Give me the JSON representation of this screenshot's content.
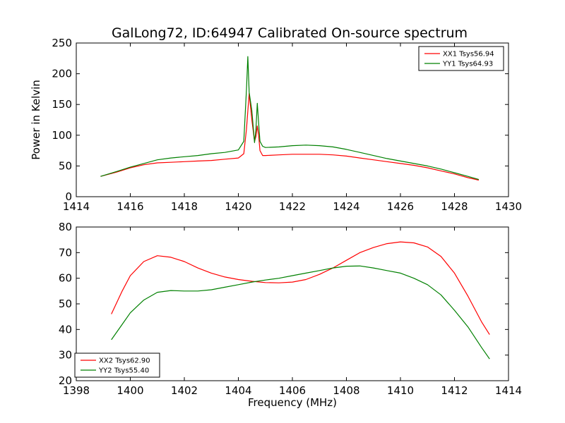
{
  "title": "GalLong72, ID:64947 Calibrated On-source spectrum",
  "chart_data": [
    {
      "type": "line",
      "title": "GalLong72, ID:64947 Calibrated On-source spectrum",
      "xlabel": "",
      "ylabel": "Power in Kelvin",
      "xlim": [
        1414,
        1430
      ],
      "ylim": [
        0,
        250
      ],
      "xticks": [
        1414,
        1416,
        1418,
        1420,
        1422,
        1424,
        1426,
        1428,
        1430
      ],
      "yticks": [
        0,
        50,
        100,
        150,
        200,
        250
      ],
      "grid": false,
      "legend": "top-right",
      "series": [
        {
          "name": "XX1 Tsys56.94",
          "color": "#ff0000",
          "x": [
            1414.9,
            1415.5,
            1416.0,
            1416.5,
            1417.0,
            1417.5,
            1418.0,
            1418.5,
            1419.0,
            1419.5,
            1420.0,
            1420.2,
            1420.3,
            1420.4,
            1420.5,
            1420.6,
            1420.65,
            1420.7,
            1420.75,
            1420.8,
            1420.9,
            1421.0,
            1421.5,
            1422.0,
            1422.5,
            1423.0,
            1423.5,
            1424.0,
            1424.5,
            1425.0,
            1425.5,
            1426.0,
            1426.5,
            1427.0,
            1427.5,
            1428.0,
            1428.5,
            1428.9
          ],
          "y": [
            33,
            40,
            47,
            52,
            55,
            56,
            57,
            58,
            59,
            61,
            63,
            70,
            110,
            168,
            125,
            90,
            98,
            115,
            100,
            75,
            67,
            67,
            68,
            69,
            69,
            69,
            68,
            66,
            63,
            60,
            57,
            54,
            51,
            47,
            42,
            37,
            31,
            27
          ]
        },
        {
          "name": "YY1 Tsys64.93",
          "color": "#008000",
          "x": [
            1414.9,
            1415.5,
            1416.0,
            1416.5,
            1417.0,
            1417.5,
            1418.0,
            1418.5,
            1419.0,
            1419.5,
            1420.0,
            1420.2,
            1420.3,
            1420.35,
            1420.4,
            1420.5,
            1420.6,
            1420.65,
            1420.7,
            1420.75,
            1420.8,
            1420.9,
            1421.0,
            1421.5,
            1422.0,
            1422.5,
            1423.0,
            1423.5,
            1424.0,
            1424.5,
            1425.0,
            1425.5,
            1426.0,
            1426.5,
            1427.0,
            1427.5,
            1428.0,
            1428.5,
            1428.9
          ],
          "y": [
            33,
            41,
            48,
            54,
            60,
            63,
            65,
            67,
            70,
            72,
            76,
            90,
            175,
            228,
            170,
            140,
            88,
            110,
            152,
            120,
            90,
            82,
            80,
            81,
            83,
            84,
            83,
            81,
            77,
            72,
            67,
            62,
            58,
            54,
            50,
            45,
            39,
            33,
            28
          ]
        }
      ]
    },
    {
      "type": "line",
      "title": "",
      "xlabel": "Frequency (MHz)",
      "ylabel": "",
      "xlim": [
        1398,
        1414
      ],
      "ylim": [
        20,
        80
      ],
      "xticks": [
        1398,
        1400,
        1402,
        1404,
        1406,
        1408,
        1410,
        1412,
        1414
      ],
      "yticks": [
        20,
        30,
        40,
        50,
        60,
        70,
        80
      ],
      "grid": false,
      "legend": "bottom-left",
      "series": [
        {
          "name": "XX2 Tsys62.90",
          "color": "#ff0000",
          "x": [
            1399.3,
            1399.7,
            1400.0,
            1400.5,
            1401.0,
            1401.5,
            1402.0,
            1402.5,
            1403.0,
            1403.5,
            1404.0,
            1404.5,
            1405.0,
            1405.5,
            1406.0,
            1406.5,
            1407.0,
            1407.5,
            1408.0,
            1408.5,
            1409.0,
            1409.5,
            1410.0,
            1410.5,
            1411.0,
            1411.5,
            1412.0,
            1412.5,
            1413.0,
            1413.3
          ],
          "y": [
            46,
            55,
            61,
            66.5,
            68.8,
            68.2,
            66.5,
            64,
            62,
            60.5,
            59.5,
            58.8,
            58.3,
            58.2,
            58.5,
            59.5,
            61.5,
            64,
            67,
            70,
            72,
            73.5,
            74.2,
            73.8,
            72.2,
            68.5,
            62,
            53,
            43,
            38
          ]
        },
        {
          "name": "YY2 Tsys55.40",
          "color": "#008000",
          "x": [
            1399.3,
            1399.7,
            1400.0,
            1400.5,
            1401.0,
            1401.5,
            1402.0,
            1402.5,
            1403.0,
            1403.5,
            1404.0,
            1404.5,
            1405.0,
            1405.5,
            1406.0,
            1406.5,
            1407.0,
            1407.5,
            1408.0,
            1408.5,
            1409.0,
            1409.5,
            1410.0,
            1410.5,
            1411.0,
            1411.5,
            1412.0,
            1412.5,
            1413.0,
            1413.3
          ],
          "y": [
            36,
            42,
            46.5,
            51.5,
            54.5,
            55.2,
            55,
            55,
            55.5,
            56.5,
            57.5,
            58.5,
            59.3,
            60,
            61,
            62,
            63,
            64,
            64.7,
            64.8,
            64,
            63,
            62,
            60,
            57.5,
            53.5,
            47.5,
            41,
            33,
            28.5
          ]
        }
      ]
    }
  ]
}
